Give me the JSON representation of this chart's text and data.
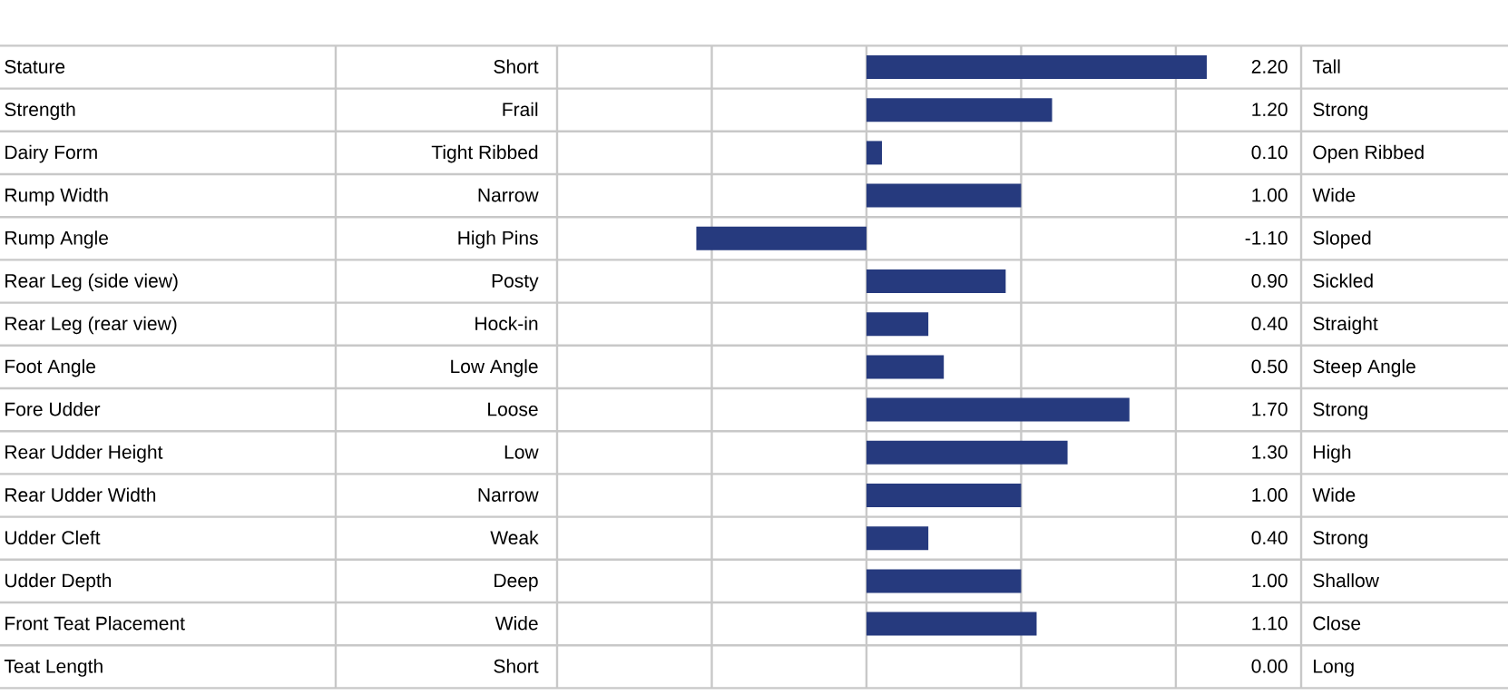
{
  "chart_data": {
    "type": "bar",
    "orientation": "horizontal",
    "color": "#263a7e",
    "categories": [
      "Stature",
      "Strength",
      "Dairy Form",
      "Rump Width",
      "Rump Angle",
      "Rear Leg (side view)",
      "Rear Leg (rear view)",
      "Foot Angle",
      "Fore Udder",
      "Rear Udder Height",
      "Rear Udder Width",
      "Udder Cleft",
      "Udder Depth",
      "Front Teat Placement",
      "Teat Length"
    ],
    "values": [
      2.2,
      1.2,
      0.1,
      1.0,
      -1.1,
      0.9,
      0.4,
      0.5,
      1.7,
      1.3,
      1.0,
      0.4,
      1.0,
      1.1,
      0.0
    ],
    "value_labels": [
      "2.20",
      "1.20",
      "0.10",
      "1.00",
      "-1.10",
      "0.90",
      "0.40",
      "0.50",
      "1.70",
      "1.30",
      "1.00",
      "0.40",
      "1.00",
      "1.10",
      "0.00"
    ],
    "xlim": [
      -2,
      2.2
    ],
    "xticks": [
      {
        "value": -2,
        "label": null
      },
      {
        "value": -1,
        "label": null
      },
      {
        "value": 0,
        "label": null
      },
      {
        "value": 1,
        "label": null
      },
      {
        "value": 2,
        "label": null
      }
    ],
    "grid": "x",
    "annotations": [
      "Short",
      "Frail",
      "Tight Ribbed",
      "Narrow",
      "High Pins",
      "Posty",
      "Hock-in",
      "Low Angle",
      "Loose",
      "Low",
      "Narrow",
      "Weak",
      "Deep",
      "Wide",
      "Short",
      "Tall",
      "Strong",
      "Open Ribbed",
      "Wide",
      "Sloped",
      "Sickled",
      "Straight",
      "Steep Angle",
      "Strong",
      "High",
      "Wide",
      "Strong",
      "Shallow",
      "Close",
      "Long"
    ]
  }
}
